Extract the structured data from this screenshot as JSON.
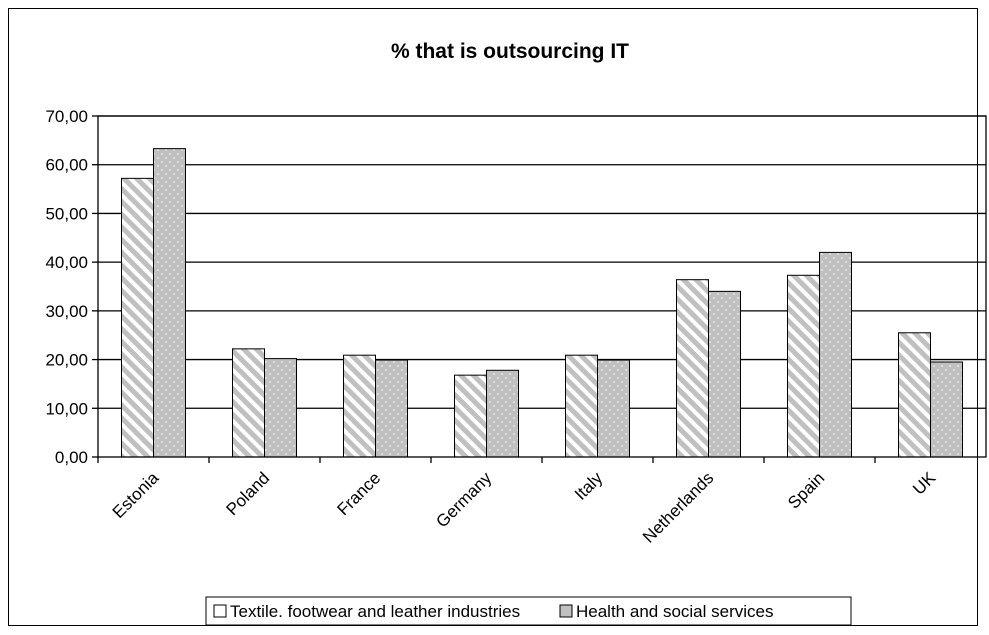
{
  "chart_data": {
    "type": "bar",
    "title": "% that is outsourcing IT",
    "xlabel": "",
    "ylabel": "",
    "categories": [
      "Estonia",
      "Poland",
      "France",
      "Germany",
      "Italy",
      "Netherlands",
      "Spain",
      "UK"
    ],
    "series": [
      {
        "name": "Textile. footwear and leather industries",
        "values": [
          57.2,
          22.2,
          20.9,
          16.8,
          20.9,
          36.4,
          37.3,
          25.5
        ],
        "pattern": "diagonal-stripe"
      },
      {
        "name": "Health and social services",
        "values": [
          63.3,
          20.2,
          19.9,
          17.8,
          19.9,
          34.0,
          42.0,
          19.5
        ],
        "pattern": "dotted-gray"
      }
    ],
    "ylim": [
      0,
      70
    ],
    "yticks": [
      "0,00",
      "10,00",
      "20,00",
      "30,00",
      "40,00",
      "50,00",
      "60,00",
      "70,00"
    ],
    "grid": true,
    "legend_position": "bottom",
    "colors": {
      "bar_fill": "#c0c0c0",
      "stripe": "#ffffff",
      "dot": "#ffffff",
      "gridline": "#000000"
    }
  }
}
